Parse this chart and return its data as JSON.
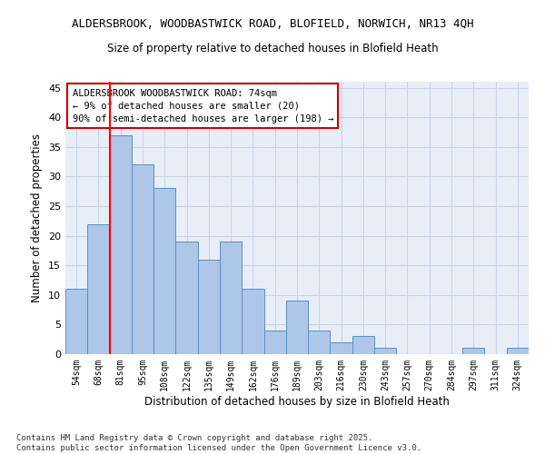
{
  "title_line1": "ALDERSBROOK, WOODBASTWICK ROAD, BLOFIELD, NORWICH, NR13 4QH",
  "title_line2": "Size of property relative to detached houses in Blofield Heath",
  "xlabel": "Distribution of detached houses by size in Blofield Heath",
  "ylabel": "Number of detached properties",
  "categories": [
    "54sqm",
    "68sqm",
    "81sqm",
    "95sqm",
    "108sqm",
    "122sqm",
    "135sqm",
    "149sqm",
    "162sqm",
    "176sqm",
    "189sqm",
    "203sqm",
    "216sqm",
    "230sqm",
    "243sqm",
    "257sqm",
    "270sqm",
    "284sqm",
    "297sqm",
    "311sqm",
    "324sqm"
  ],
  "values": [
    11,
    22,
    37,
    32,
    28,
    19,
    16,
    19,
    11,
    4,
    9,
    4,
    2,
    3,
    1,
    0,
    0,
    0,
    1,
    0,
    1
  ],
  "bar_color": "#aec6e8",
  "bar_edge_color": "#5a8fc2",
  "background_color": "#e8eef8",
  "grid_color": "#c8d4e8",
  "red_line_x": 1.5,
  "annotation_text": "ALDERSBROOK WOODBASTWICK ROAD: 74sqm\n← 9% of detached houses are smaller (20)\n90% of semi-detached houses are larger (198) →",
  "annotation_box_color": "#ffffff",
  "annotation_border_color": "#cc0000",
  "footer_text": "Contains HM Land Registry data © Crown copyright and database right 2025.\nContains public sector information licensed under the Open Government Licence v3.0.",
  "ylim": [
    0,
    46
  ],
  "yticks": [
    0,
    5,
    10,
    15,
    20,
    25,
    30,
    35,
    40,
    45
  ]
}
